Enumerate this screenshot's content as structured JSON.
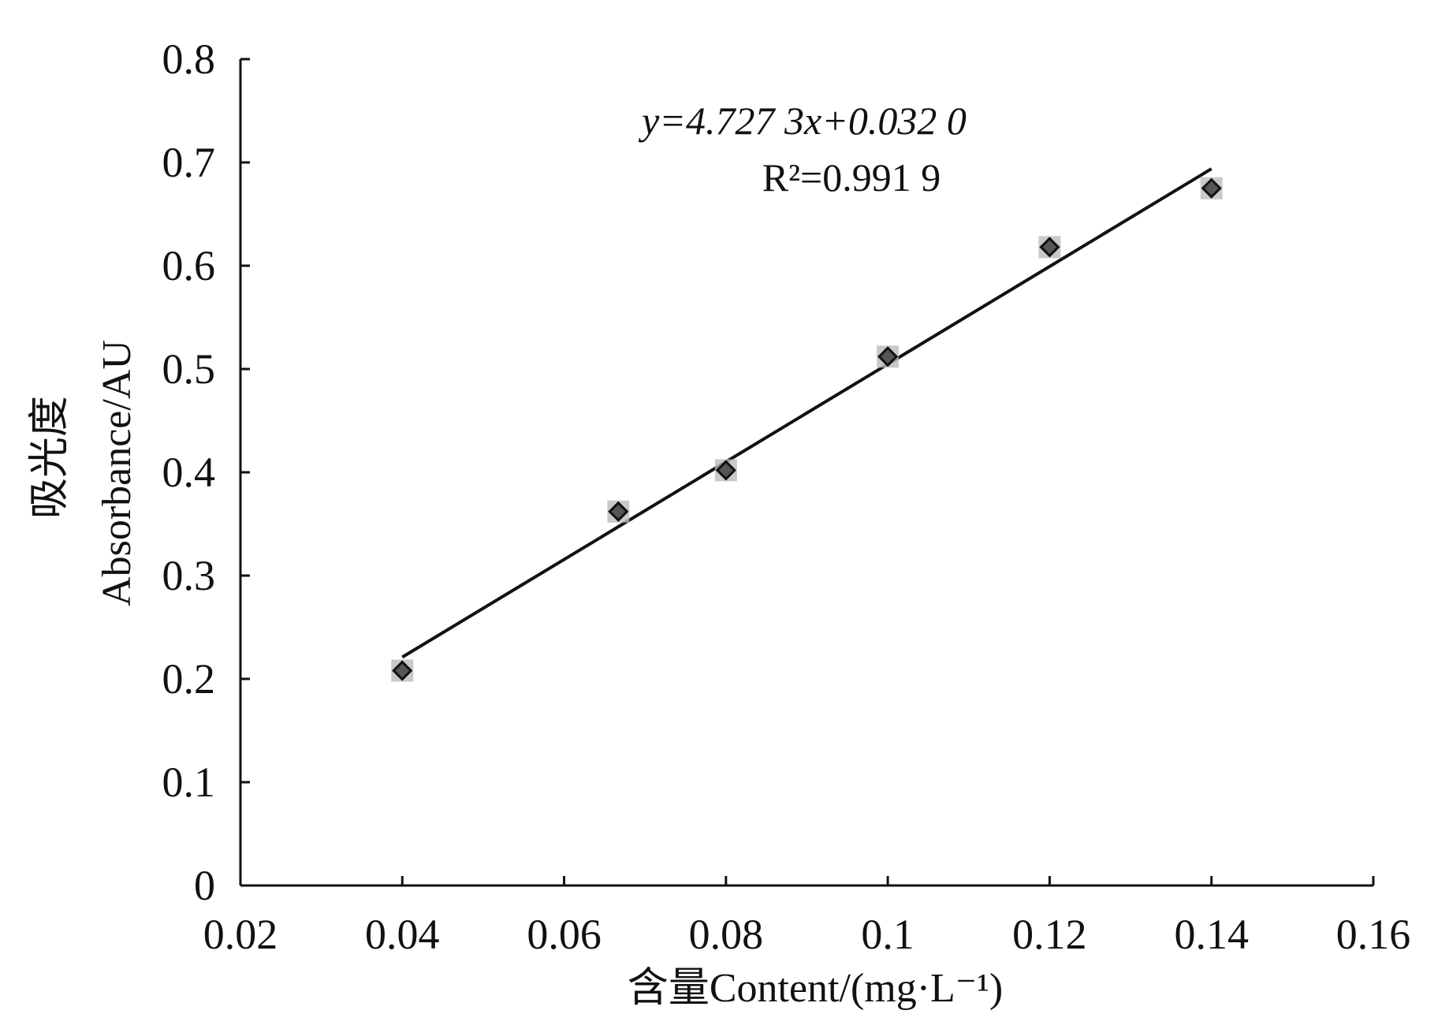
{
  "chart_data": {
    "type": "scatter",
    "title": "",
    "xlabel": "含量Content/(mg·L⁻¹)",
    "ylabel_cn": "吸光度",
    "ylabel_en": "Absorbance/AU",
    "xlim": [
      0.02,
      0.16
    ],
    "ylim": [
      0,
      0.8
    ],
    "xticks": [
      0.02,
      0.04,
      0.06,
      0.08,
      0.1,
      0.12,
      0.14,
      0.16
    ],
    "xtick_labels": [
      "0.02",
      "0.04",
      "0.06",
      "0.08",
      "0.1",
      "0.12",
      "0.14",
      "0.16"
    ],
    "yticks": [
      0,
      0.1,
      0.2,
      0.3,
      0.4,
      0.5,
      0.6,
      0.7,
      0.8
    ],
    "ytick_labels": [
      "0",
      "0.1",
      "0.2",
      "0.3",
      "0.4",
      "0.5",
      "0.6",
      "0.7",
      "0.8"
    ],
    "grid": false,
    "series": [
      {
        "x": [
          0.04,
          0.0667,
          0.08,
          0.1,
          0.12,
          0.14
        ],
        "y": [
          0.208,
          0.362,
          0.402,
          0.512,
          0.618,
          0.675
        ]
      }
    ],
    "trendline": {
      "slope": 4.7273,
      "intercept": 0.032,
      "x_range": [
        0.04,
        0.14
      ],
      "equation": "y=4.727 3x+0.032 0",
      "r2": "R²=0.991 9"
    },
    "colors": {
      "marker_fill": "#555555",
      "marker_halo": "#bbbbbb",
      "line": "#111111",
      "axis": "#111111"
    }
  }
}
